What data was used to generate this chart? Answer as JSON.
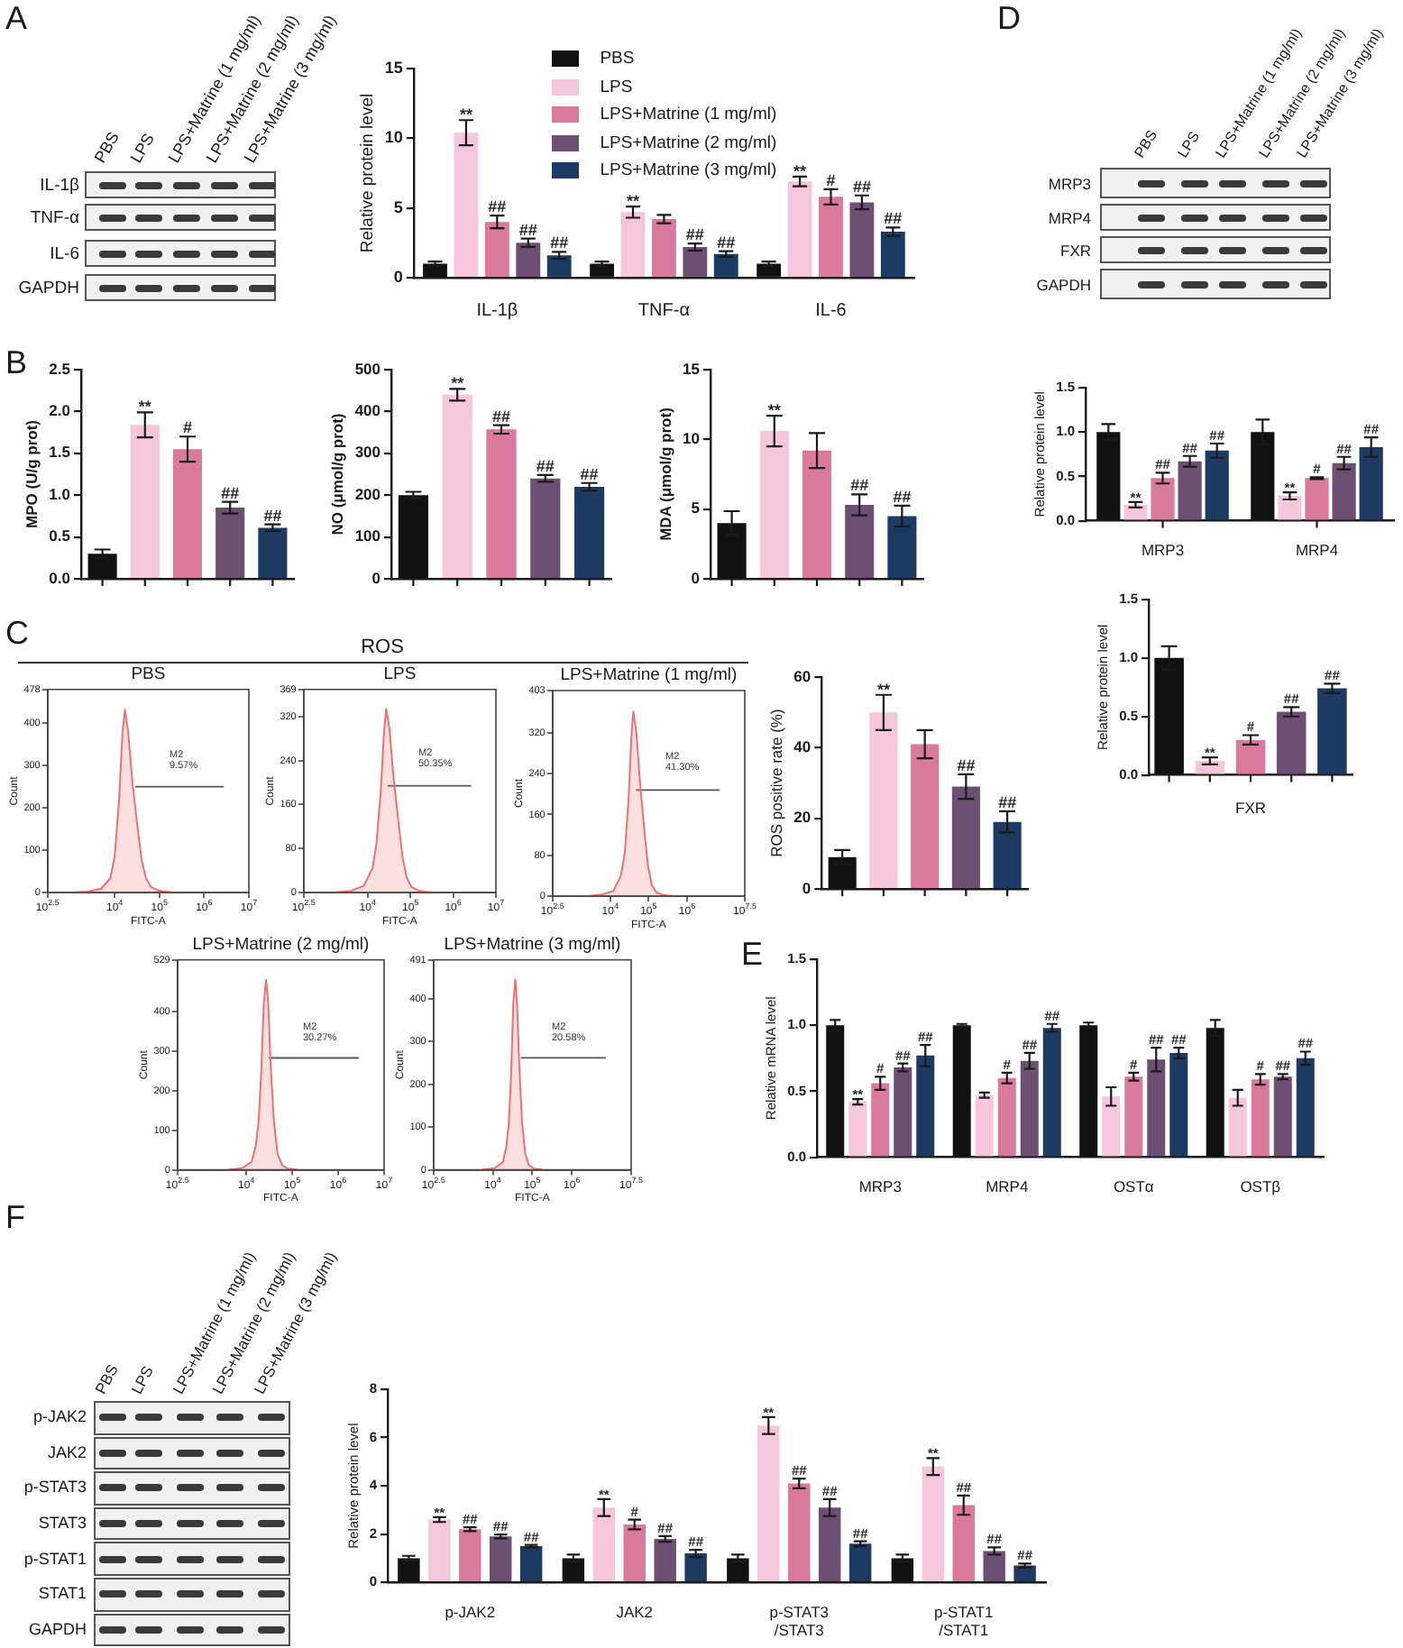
{
  "chart_data": [
    {
      "type": "other",
      "categories": [
        "PBS",
        "LPS",
        "LPS+Matrine (1 mg/ml)",
        "LPS+Matrine (2 mg/ml)",
        "LPS+Matrine (3 mg/ml)"
      ],
      "y_categories": [
        "IL-1β",
        "TNF-α",
        "IL-6",
        "GAPDH"
      ],
      "annotations": [
        "A"
      ]
    },
    {
      "type": "bar",
      "ylabel": "Relative protein level",
      "categories": [
        "IL-1β",
        "TNF-α",
        "IL-6"
      ],
      "series": [
        {
          "name": "PBS",
          "color": "#111111",
          "values": [
            1.0,
            1.0,
            1.0
          ],
          "errors": [
            0.15,
            0.15,
            0.15
          ]
        },
        {
          "name": "LPS",
          "color": "#f5c6dc",
          "values": [
            10.4,
            4.7,
            6.9
          ],
          "errors": [
            0.9,
            0.4,
            0.35
          ],
          "value_labels": [
            "**",
            "**",
            "**"
          ]
        },
        {
          "name": "LPS+Matrine (1 mg/ml)",
          "color": "#d9799b",
          "values": [
            4.0,
            4.2,
            5.8
          ],
          "errors": [
            0.45,
            0.3,
            0.55
          ],
          "value_labels": [
            "##",
            null,
            "#"
          ]
        },
        {
          "name": "LPS+Matrine (2 mg/ml)",
          "color": "#6c4f73",
          "values": [
            2.5,
            2.2,
            5.4
          ],
          "errors": [
            0.3,
            0.25,
            0.5
          ],
          "value_labels": [
            "##",
            "##",
            "##"
          ]
        },
        {
          "name": "LPS+Matrine (3 mg/ml)",
          "color": "#1d3a63",
          "values": [
            1.6,
            1.7,
            3.3
          ],
          "errors": [
            0.25,
            0.2,
            0.3
          ],
          "value_labels": [
            "##",
            "##",
            "##"
          ]
        }
      ],
      "ylim": [
        0,
        15
      ],
      "yticks": [
        0,
        5,
        10,
        15
      ],
      "legend": "top"
    },
    {
      "type": "bar",
      "ylabel": "MPO (U/g prot)",
      "categories": [
        null,
        null,
        null,
        null,
        null
      ],
      "values": [
        0.3,
        1.84,
        1.55,
        0.85,
        0.61
      ],
      "colors": [
        "#111111",
        "#f5c6dc",
        "#d9799b",
        "#6c4f73",
        "#1d3a63"
      ],
      "errors": [
        0.05,
        0.15,
        0.15,
        0.07,
        0.04
      ],
      "value_labels": [
        null,
        "**",
        "#",
        "##",
        "##"
      ],
      "ylim": [
        0,
        2.5
      ],
      "yticks": [
        {
          "value": 0,
          "label": "0.0"
        },
        0.5,
        {
          "value": 1,
          "label": "1.0"
        },
        1.5,
        {
          "value": 2,
          "label": "2.0"
        },
        2.5
      ],
      "annotations": [
        "B"
      ]
    },
    {
      "type": "bar",
      "ylabel": "NO (μmol/g prot)",
      "categories": [
        null,
        null,
        null,
        null,
        null
      ],
      "values": [
        200,
        440,
        357,
        240,
        220
      ],
      "colors": [
        "#111111",
        "#f5c6dc",
        "#d9799b",
        "#6c4f73",
        "#1d3a63"
      ],
      "errors": [
        8,
        14,
        10,
        8,
        9
      ],
      "value_labels": [
        null,
        "**",
        "##",
        "##",
        "##"
      ],
      "ylim": [
        0,
        500
      ],
      "yticks": [
        0,
        100,
        200,
        300,
        400,
        500
      ]
    },
    {
      "type": "bar",
      "ylabel": "MDA (μmol/g prot)",
      "categories": [
        null,
        null,
        null,
        null,
        null
      ],
      "values": [
        4.0,
        10.6,
        9.2,
        5.3,
        4.5
      ],
      "colors": [
        "#111111",
        "#f5c6dc",
        "#d9799b",
        "#6c4f73",
        "#1d3a63"
      ],
      "errors": [
        0.85,
        1.1,
        1.25,
        0.75,
        0.75
      ],
      "value_labels": [
        null,
        "**",
        null,
        "##",
        "##"
      ],
      "ylim": [
        0,
        15
      ],
      "yticks": [
        0,
        5,
        10,
        15
      ]
    },
    {
      "type": "other",
      "title": "ROS",
      "annotations": [
        "C"
      ]
    },
    {
      "type": "area",
      "title": "PBS",
      "xlabel": "FITC-A",
      "ylabel": "Count",
      "log": "x",
      "series": [
        {
          "x": [
            1000,
            2500,
            5000,
            8000,
            10000,
            12500,
            15000,
            17000,
            20000,
            25000,
            32000,
            40000,
            50000,
            65000,
            100000,
            200000
          ],
          "values": [
            0,
            2,
            9,
            34,
            86,
            215,
            378,
            430,
            378,
            258,
            159,
            77,
            34,
            13,
            4,
            0
          ],
          "color": "#f07070"
        },
        {
          "type": "line",
          "x": [
            29000,
            2750000
          ],
          "values": [
            249,
            249
          ],
          "color": "#555555"
        }
      ],
      "xlim": [
        316.23,
        10000000
      ],
      "xticks": [
        {
          "value": 316.23,
          "label": "10$^{2.5}$"
        },
        {
          "value": 10000,
          "label": "10$^{4}$"
        },
        {
          "value": 100000,
          "label": "10$^{5}$"
        },
        {
          "value": 1000000,
          "label": "10$^{6}$"
        },
        {
          "value": 10000000,
          "label": "10$^{7}$"
        }
      ],
      "ylim": [
        0,
        478
      ],
      "yticks": [
        0,
        100,
        200,
        300,
        400,
        478
      ],
      "annotations": [
        "M2",
        "9.57%"
      ]
    },
    {
      "type": "area",
      "title": "LPS",
      "xlabel": "FITC-A",
      "ylabel": "Count",
      "log": "x",
      "series": [
        {
          "x": [
            1600,
            4000,
            8100,
            13000,
            16000,
            20000,
            24000,
            27000,
            32000,
            40000,
            52000,
            65000,
            81000,
            105000,
            160000,
            320000
          ],
          "values": [
            0,
            3,
            12,
            45,
            90,
            180,
            290,
            334,
            300,
            210,
            130,
            65,
            28,
            10,
            3,
            0
          ],
          "color": "#f07070"
        },
        {
          "type": "line",
          "x": [
            29000,
            2630000
          ],
          "values": [
            194,
            194
          ],
          "color": "#555555"
        }
      ],
      "xlim": [
        316.23,
        10000000
      ],
      "xticks": [
        {
          "value": 316.23,
          "label": "10$^{2.5}$"
        },
        {
          "value": 10000,
          "label": "10$^{4}$"
        },
        {
          "value": 100000,
          "label": "10$^{5}$"
        },
        {
          "value": 1000000,
          "label": "10$^{6}$"
        },
        {
          "value": 10000000,
          "label": "10$^{7}$"
        }
      ],
      "ylim": [
        0,
        369
      ],
      "yticks": [
        0,
        80,
        160,
        240,
        320,
        369
      ],
      "annotations": [
        "M2",
        "50.35%"
      ]
    },
    {
      "type": "area",
      "title": "LPS+Matrine (1 mg/ml)",
      "xlabel": "FITC-A",
      "ylabel": "Count",
      "log": "x",
      "series": [
        {
          "x": [
            2400,
            6000,
            12000,
            19000,
            24000,
            30000,
            36000,
            40000,
            48000,
            60000,
            77000,
            96000,
            120000,
            156000,
            240000,
            480000
          ],
          "values": [
            0,
            3,
            10,
            40,
            85,
            190,
            320,
            362,
            320,
            220,
            130,
            60,
            22,
            8,
            2,
            0
          ],
          "color": "#f07070"
        },
        {
          "type": "line",
          "x": [
            47000,
            7080000
          ],
          "values": [
            208,
            208
          ],
          "color": "#555555"
        }
      ],
      "xlim": [
        316.23,
        31622777
      ],
      "xticks": [
        {
          "value": 316.23,
          "label": "10$^{2.5}$"
        },
        {
          "value": 10000,
          "label": "10$^{4}$"
        },
        {
          "value": 100000,
          "label": "10$^{5}$"
        },
        {
          "value": 1000000,
          "label": "10$^{6}$"
        },
        {
          "value": 31622777,
          "label": "10$^{7.5}$"
        }
      ],
      "ylim": [
        0,
        403
      ],
      "yticks": [
        0,
        80,
        160,
        240,
        320,
        403
      ],
      "annotations": [
        "M2",
        "41.30%"
      ]
    },
    {
      "type": "area",
      "title": "LPS+Matrine (2 mg/ml)",
      "xlabel": "FITC-A",
      "ylabel": "Count",
      "log": "x",
      "series": [
        {
          "x": [
            4000,
            8000,
            13000,
            16000,
            18500,
            21000,
            24000,
            27000,
            30000,
            34000,
            40000,
            48000,
            60000,
            80000,
            130000
          ],
          "values": [
            0,
            4,
            20,
            60,
            120,
            240,
            420,
            479,
            420,
            260,
            120,
            40,
            12,
            3,
            0
          ],
          "color": "#f07070"
        },
        {
          "type": "line",
          "x": [
            31000,
            2800000
          ],
          "values": [
            282,
            282
          ],
          "color": "#555555"
        }
      ],
      "xlim": [
        316.23,
        10000000
      ],
      "xticks": [
        {
          "value": 316.23,
          "label": "10$^{2.5}$"
        },
        {
          "value": 10000,
          "label": "10$^{4}$"
        },
        {
          "value": 100000,
          "label": "10$^{5}$"
        },
        {
          "value": 1000000,
          "label": "10$^{6}$"
        },
        {
          "value": 10000000,
          "label": "10$^{7}$"
        }
      ],
      "ylim": [
        0,
        529
      ],
      "yticks": [
        0,
        100,
        200,
        300,
        400,
        529
      ],
      "annotations": [
        "M2",
        "30.27%"
      ]
    },
    {
      "type": "area",
      "title": "LPS+Matrine (3 mg/ml)",
      "xlabel": "FITC-A",
      "ylabel": "Count",
      "log": "x",
      "series": [
        {
          "x": [
            5500,
            11000,
            18000,
            22000,
            25500,
            29000,
            33000,
            37000,
            41000,
            47000,
            55000,
            66000,
            82000,
            110000,
            180000
          ],
          "values": [
            0,
            4,
            18,
            55,
            110,
            220,
            390,
            445,
            390,
            240,
            110,
            38,
            11,
            3,
            0
          ],
          "color": "#f07070"
        },
        {
          "type": "line",
          "x": [
            51000,
            7200000
          ],
          "values": [
            262,
            262
          ],
          "color": "#555555"
        }
      ],
      "xlim": [
        316.23,
        31622777
      ],
      "xticks": [
        {
          "value": 316.23,
          "label": "10$^{2.5}$"
        },
        {
          "value": 10000,
          "label": "10$^{4}$"
        },
        {
          "value": 100000,
          "label": "10$^{5}$"
        },
        {
          "value": 1000000,
          "label": "10$^{6}$"
        },
        {
          "value": 31622777,
          "label": "10$^{7.5}$"
        }
      ],
      "ylim": [
        0,
        491
      ],
      "yticks": [
        0,
        100,
        200,
        300,
        400,
        491
      ],
      "annotations": [
        "M2",
        "20.58%"
      ]
    },
    {
      "type": "bar",
      "ylabel": "ROS positive rate (%)",
      "categories": [
        null,
        null,
        null,
        null,
        null
      ],
      "values": [
        9,
        50,
        41,
        29,
        19
      ],
      "colors": [
        "#111111",
        "#f5c6dc",
        "#d9799b",
        "#6c4f73",
        "#1d3a63"
      ],
      "errors": [
        2,
        5,
        4,
        3.5,
        3
      ],
      "value_labels": [
        null,
        "**",
        null,
        "##",
        "##"
      ],
      "ylim": [
        0,
        60
      ],
      "yticks": [
        0,
        20,
        40,
        60
      ]
    },
    {
      "type": "other",
      "categories": [
        "PBS",
        "LPS",
        "LPS+Matrine (1 mg/ml)",
        "LPS+Matrine (2 mg/ml)",
        "LPS+Matrine (3 mg/ml)"
      ],
      "y_categories": [
        "MRP3",
        "MRP4",
        "FXR",
        "GAPDH"
      ],
      "annotations": [
        "D"
      ]
    },
    {
      "type": "bar",
      "ylabel": "Relative protein level",
      "categories": [
        "MRP3",
        "MRP4"
      ],
      "series": [
        {
          "color": "#111111",
          "values": [
            1.0,
            1.0
          ],
          "errors": [
            0.09,
            0.14
          ]
        },
        {
          "color": "#f5c6dc",
          "values": [
            0.18,
            0.28
          ],
          "errors": [
            0.03,
            0.04
          ],
          "value_labels": [
            "**",
            "**"
          ]
        },
        {
          "color": "#d9799b",
          "values": [
            0.48,
            0.48
          ],
          "errors": [
            0.06,
            0.01
          ],
          "value_labels": [
            "##",
            "#"
          ]
        },
        {
          "color": "#6c4f73",
          "values": [
            0.67,
            0.65
          ],
          "errors": [
            0.06,
            0.07
          ],
          "value_labels": [
            "##",
            "##"
          ]
        },
        {
          "color": "#1d3a63",
          "values": [
            0.79,
            0.83
          ],
          "errors": [
            0.08,
            0.11
          ],
          "value_labels": [
            "##",
            "##"
          ]
        }
      ],
      "ylim": [
        0,
        1.5
      ],
      "yticks": [
        {
          "value": 0,
          "label": "0.0"
        },
        0.5,
        {
          "value": 1,
          "label": "1.0"
        },
        1.5
      ]
    },
    {
      "type": "bar",
      "ylabel": "Relative protein level",
      "xlabel": "FXR",
      "categories": [
        null,
        null,
        null,
        null,
        null
      ],
      "values": [
        1.0,
        0.12,
        0.3,
        0.54,
        0.74
      ],
      "colors": [
        "#111111",
        "#f5c6dc",
        "#d9799b",
        "#6c4f73",
        "#1d3a63"
      ],
      "errors": [
        0.1,
        0.03,
        0.04,
        0.04,
        0.04
      ],
      "value_labels": [
        null,
        "**",
        "#",
        "##",
        "##"
      ],
      "ylim": [
        0,
        1.5
      ],
      "yticks": [
        {
          "value": 0,
          "label": "0.0"
        },
        0.5,
        {
          "value": 1,
          "label": "1.0"
        },
        1.5
      ]
    },
    {
      "type": "bar",
      "ylabel": "Relative mRNA level",
      "categories": [
        "MRP3",
        "MRP4",
        "OSTα",
        "OSTβ"
      ],
      "series": [
        {
          "color": "#111111",
          "values": [
            1.0,
            1.0,
            1.0,
            0.98
          ],
          "errors": [
            0.04,
            0.01,
            0.02,
            0.06
          ]
        },
        {
          "color": "#f5c6dc",
          "values": [
            0.42,
            0.47,
            0.46,
            0.45
          ],
          "errors": [
            0.02,
            0.02,
            0.07,
            0.06
          ],
          "value_labels": [
            "**",
            null,
            null,
            null
          ]
        },
        {
          "color": "#d9799b",
          "values": [
            0.56,
            0.6,
            0.61,
            0.59
          ],
          "errors": [
            0.05,
            0.04,
            0.03,
            0.04
          ],
          "value_labels": [
            "#",
            "#",
            "#",
            "#"
          ]
        },
        {
          "color": "#6c4f73",
          "values": [
            0.68,
            0.73,
            0.74,
            0.61
          ],
          "errors": [
            0.03,
            0.06,
            0.09,
            0.02
          ],
          "value_labels": [
            "##",
            "##",
            "##",
            "##"
          ]
        },
        {
          "color": "#1d3a63",
          "values": [
            0.77,
            0.98,
            0.79,
            0.75
          ],
          "errors": [
            0.08,
            0.03,
            0.04,
            0.05
          ],
          "value_labels": [
            "##",
            "##",
            "##",
            "##"
          ]
        }
      ],
      "ylim": [
        0,
        1.5
      ],
      "yticks": [
        {
          "value": 0,
          "label": "0.0"
        },
        0.5,
        {
          "value": 1,
          "label": "1.0"
        },
        1.5
      ],
      "annotations": [
        "E"
      ]
    },
    {
      "type": "other",
      "categories": [
        "PBS",
        "LPS",
        "LPS+Matrine (1 mg/ml)",
        "LPS+Matrine (2 mg/ml)",
        "LPS+Matrine (3 mg/ml)"
      ],
      "y_categories": [
        "p-JAK2",
        "JAK2",
        "p-STAT3",
        "STAT3",
        "p-STAT1",
        "STAT1",
        "GAPDH"
      ],
      "annotations": [
        "F"
      ]
    },
    {
      "type": "bar",
      "ylabel": "Relative protein level",
      "categories": [
        "p-JAK2",
        "JAK2",
        "p-STAT3\n/STAT3",
        "p-STAT1\n/STAT1"
      ],
      "series": [
        {
          "color": "#111111",
          "values": [
            1.0,
            1.0,
            1.0,
            1.0
          ],
          "errors": [
            0.1,
            0.15,
            0.15,
            0.15
          ]
        },
        {
          "color": "#f5c6dc",
          "values": [
            2.6,
            3.1,
            6.5,
            4.8
          ],
          "errors": [
            0.1,
            0.35,
            0.35,
            0.35
          ],
          "value_labels": [
            "**",
            "**",
            "**",
            "**"
          ]
        },
        {
          "color": "#d9799b",
          "values": [
            2.2,
            2.4,
            4.1,
            3.2
          ],
          "errors": [
            0.08,
            0.2,
            0.2,
            0.4
          ],
          "value_labels": [
            "##",
            "#",
            "##",
            "##"
          ]
        },
        {
          "color": "#6c4f73",
          "values": [
            1.9,
            1.8,
            3.1,
            1.3
          ],
          "errors": [
            0.08,
            0.12,
            0.35,
            0.15
          ],
          "value_labels": [
            "##",
            "##",
            "##",
            "##"
          ]
        },
        {
          "color": "#1d3a63",
          "values": [
            1.5,
            1.2,
            1.6,
            0.7
          ],
          "errors": [
            0.05,
            0.15,
            0.1,
            0.08
          ],
          "value_labels": [
            "##",
            "##",
            "##",
            "##"
          ]
        }
      ],
      "ylim": [
        0,
        8
      ],
      "yticks": [
        0,
        2,
        4,
        6,
        8
      ]
    }
  ]
}
